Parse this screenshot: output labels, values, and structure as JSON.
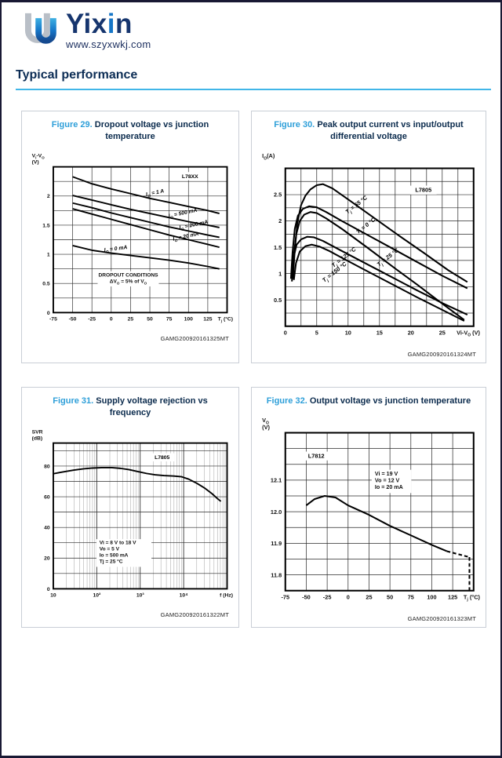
{
  "page": {
    "brand": {
      "pre": "Yix",
      "hi": "i",
      "post": "n"
    },
    "website": "www.szyxwkj.com",
    "heading": "Typical performance",
    "colors": {
      "accent_blue": "#2e9fd9",
      "navy": "#0b2b4d",
      "underline": "#41b6e8",
      "brand_navy": "#16356e",
      "brand_highlight": "#1576c8"
    }
  },
  "figures": [
    {
      "label": "Figure 29.",
      "title": "Dropout voltage vs junction temperature",
      "code": "GAMG200920161325MT"
    },
    {
      "label": "Figure 30.",
      "title": "Peak output current vs input/output differential voltage",
      "code": "GAMG200920161324MT"
    },
    {
      "label": "Figure 31.",
      "title": "Supply voltage rejection vs frequency",
      "code": "GAMG200920161322MT"
    },
    {
      "label": "Figure 32.",
      "title": "Output voltage vs junction temperature",
      "code": "GAMG200920161323MT"
    }
  ],
  "chart_data": [
    {
      "type": "line",
      "title": "Dropout voltage vs junction temperature",
      "xscale": "linear",
      "xlim": [
        -75,
        150
      ],
      "ylim": [
        0,
        2.5
      ],
      "xgrid": 25,
      "ygrid": 0.25,
      "xlabel": "T~j~ (°C)",
      "ylabel_lines": [
        "V~I~-V~O~",
        "(V)"
      ],
      "xticks": [
        {
          "v": -75,
          "l": "-75"
        },
        {
          "v": -50,
          "l": "-50"
        },
        {
          "v": -25,
          "l": "-25"
        },
        {
          "v": 0,
          "l": "0"
        },
        {
          "v": 25,
          "l": "25"
        },
        {
          "v": 50,
          "l": "50"
        },
        {
          "v": 75,
          "l": "75"
        },
        {
          "v": 100,
          "l": "100"
        },
        {
          "v": 125,
          "l": "125"
        }
      ],
      "yticks": [
        {
          "v": 0,
          "l": "0"
        },
        {
          "v": 0.5,
          "l": "0.5"
        },
        {
          "v": 1,
          "l": "1"
        },
        {
          "v": 1.5,
          "l": "1.5"
        },
        {
          "v": 2,
          "l": "2"
        }
      ],
      "series": [
        {
          "name": "Io = 1 A",
          "points": [
            [
              -50,
              2.33
            ],
            [
              -25,
              2.21
            ],
            [
              0,
              2.12
            ],
            [
              25,
              2.04
            ],
            [
              50,
              1.96
            ],
            [
              75,
              1.89
            ],
            [
              100,
              1.82
            ],
            [
              125,
              1.75
            ],
            [
              140,
              1.7
            ]
          ]
        },
        {
          "name": "Io = 500 mA",
          "points": [
            [
              -50,
              2.01
            ],
            [
              -25,
              1.93
            ],
            [
              0,
              1.85
            ],
            [
              25,
              1.77
            ],
            [
              50,
              1.7
            ],
            [
              75,
              1.63
            ],
            [
              100,
              1.56
            ],
            [
              125,
              1.5
            ],
            [
              140,
              1.46
            ]
          ]
        },
        {
          "name": "Io = 200 mA",
          "points": [
            [
              -50,
              1.88
            ],
            [
              -25,
              1.8
            ],
            [
              0,
              1.71
            ],
            [
              25,
              1.63
            ],
            [
              50,
              1.55
            ],
            [
              75,
              1.47
            ],
            [
              100,
              1.4
            ],
            [
              125,
              1.33
            ],
            [
              140,
              1.29
            ]
          ]
        },
        {
          "name": "Io = 20 mA",
          "points": [
            [
              -50,
              1.78
            ],
            [
              -25,
              1.69
            ],
            [
              0,
              1.6
            ],
            [
              25,
              1.51
            ],
            [
              50,
              1.42
            ],
            [
              75,
              1.33
            ],
            [
              100,
              1.25
            ],
            [
              125,
              1.17
            ],
            [
              140,
              1.12
            ]
          ]
        },
        {
          "name": "Io = 0 mA",
          "points": [
            [
              -50,
              1.15
            ],
            [
              -25,
              1.07
            ],
            [
              0,
              1.02
            ],
            [
              25,
              0.98
            ],
            [
              50,
              0.94
            ],
            [
              75,
              0.9
            ],
            [
              100,
              0.85
            ],
            [
              125,
              0.79
            ],
            [
              140,
              0.75
            ]
          ]
        }
      ],
      "labels": [
        {
          "text": "L78XX",
          "x": 102,
          "y": 2.31,
          "rot": 0,
          "box": true
        },
        {
          "text": "I~O~ = 1 A",
          "x": 57,
          "y": 2.03,
          "rot": -12,
          "italic": true
        },
        {
          "text": "I~O~ = 500 mA",
          "x": 93,
          "y": 1.68,
          "rot": -12,
          "italic": true
        },
        {
          "text": "I~O~ = 200 mA",
          "x": 107,
          "y": 1.48,
          "rot": -12,
          "italic": true
        },
        {
          "text": "I~O~ = 20 mA",
          "x": 97,
          "y": 1.28,
          "rot": -12,
          "italic": true
        },
        {
          "text": "I~O~ = 0 mA",
          "x": 6,
          "y": 1.07,
          "rot": -7,
          "italic": true
        }
      ],
      "notes": [
        {
          "lines": [
            "DROPOUT CONDITIONS",
            "ΔV~O~ = 5% of V~O~"
          ],
          "x": 22,
          "y": 0.62,
          "anchor": "middle"
        }
      ]
    },
    {
      "type": "line",
      "title": "Peak output current vs input/output differential voltage",
      "xscale": "linear",
      "xlim": [
        0,
        30
      ],
      "ylim": [
        0,
        3
      ],
      "xgrid": 2.5,
      "ygrid": 0.25,
      "xlabel": "Vi-V~O~ (V)",
      "ylabel_lines": [
        "I~O~(A)"
      ],
      "xticks": [
        {
          "v": 0,
          "l": "0"
        },
        {
          "v": 5,
          "l": "5"
        },
        {
          "v": 10,
          "l": "10"
        },
        {
          "v": 15,
          "l": "15"
        },
        {
          "v": 20,
          "l": "20"
        },
        {
          "v": 25,
          "l": "25"
        }
      ],
      "yticks": [
        {
          "v": 0.5,
          "l": "0.5"
        },
        {
          "v": 1,
          "l": "1"
        },
        {
          "v": 1.5,
          "l": "1.5"
        },
        {
          "v": 2,
          "l": "2"
        },
        {
          "v": 2.5,
          "l": "2.5"
        }
      ],
      "series": [
        {
          "name": "Tj = 55 °C",
          "points": [
            [
              1.2,
              0.9
            ],
            [
              1.5,
              1.45
            ],
            [
              1.9,
              1.95
            ],
            [
              2.5,
              2.3
            ],
            [
              3.2,
              2.48
            ],
            [
              4,
              2.6
            ],
            [
              5,
              2.68
            ],
            [
              6,
              2.7
            ],
            [
              7.5,
              2.62
            ],
            [
              10,
              2.41
            ],
            [
              14,
              2.07
            ],
            [
              18,
              1.73
            ],
            [
              22,
              1.4
            ],
            [
              26,
              1.06
            ],
            [
              29,
              0.84
            ]
          ]
        },
        {
          "name": "Tj = 0 °C",
          "points": [
            [
              0.9,
              0.9
            ],
            [
              1.15,
              1.4
            ],
            [
              1.5,
              1.85
            ],
            [
              2,
              2.1
            ],
            [
              2.8,
              2.23
            ],
            [
              3.8,
              2.28
            ],
            [
              5,
              2.26
            ],
            [
              6.5,
              2.17
            ],
            [
              9,
              2.0
            ],
            [
              13,
              1.74
            ],
            [
              17,
              1.48
            ],
            [
              21,
              1.22
            ],
            [
              25,
              0.96
            ],
            [
              29,
              0.72
            ]
          ]
        },
        {
          "name": "Tj = 25 °C",
          "points": [
            [
              1.05,
              0.85
            ],
            [
              1.35,
              1.35
            ],
            [
              1.75,
              1.75
            ],
            [
              2.3,
              2.0
            ],
            [
              3,
              2.12
            ],
            [
              4,
              2.17
            ],
            [
              5,
              2.15
            ],
            [
              6.5,
              2.05
            ],
            [
              9,
              1.85
            ],
            [
              13,
              1.5
            ],
            [
              17,
              1.14
            ],
            [
              21,
              0.79
            ],
            [
              25,
              0.43
            ],
            [
              28.5,
              0.12
            ]
          ]
        },
        {
          "name": "Tj = 125 °C",
          "points": [
            [
              1.0,
              0.95
            ],
            [
              1.3,
              1.3
            ],
            [
              1.8,
              1.55
            ],
            [
              2.5,
              1.65
            ],
            [
              3.5,
              1.7
            ],
            [
              4.5,
              1.69
            ],
            [
              6,
              1.62
            ],
            [
              9,
              1.43
            ],
            [
              13,
              1.18
            ],
            [
              17,
              0.93
            ],
            [
              21,
              0.68
            ],
            [
              25,
              0.44
            ],
            [
              29,
              0.22
            ]
          ]
        },
        {
          "name": "Tj = 150 °C",
          "points": [
            [
              1.35,
              0.88
            ],
            [
              1.7,
              1.2
            ],
            [
              2.3,
              1.42
            ],
            [
              3.2,
              1.52
            ],
            [
              4.2,
              1.55
            ],
            [
              5.5,
              1.51
            ],
            [
              7,
              1.43
            ],
            [
              9,
              1.3
            ],
            [
              13,
              1.05
            ],
            [
              17,
              0.8
            ],
            [
              21,
              0.55
            ],
            [
              25,
              0.31
            ],
            [
              28.5,
              0.1
            ]
          ]
        }
      ],
      "labels": [
        {
          "text": "L7805",
          "x": 22,
          "y": 2.55,
          "rot": 0,
          "box": true
        },
        {
          "text": "T~j~ = 55 °C",
          "x": 11.5,
          "y": 2.28,
          "rot": -38,
          "italic": true
        },
        {
          "text": "T~j~ = 0 °C",
          "x": 13,
          "y": 1.88,
          "rot": -38,
          "italic": true
        },
        {
          "text": "T~j~ = 125 °C",
          "x": 9.5,
          "y": 1.28,
          "rot": -38,
          "italic": true
        },
        {
          "text": "T~j~ = 25 °C",
          "x": 16.5,
          "y": 1.28,
          "rot": -38,
          "italic": true
        },
        {
          "text": "T~j~ = 150 °C",
          "x": 8,
          "y": 1.0,
          "rot": -38,
          "italic": true
        }
      ],
      "notes": []
    },
    {
      "type": "line",
      "title": "Supply voltage rejection vs frequency",
      "xscale": "log",
      "xlim": [
        10,
        100000
      ],
      "ylim": [
        0,
        95
      ],
      "ygrid": 10,
      "xlabel": "f (Hz)",
      "ylabel_lines": [
        "SVR",
        "(dB)"
      ],
      "xticks": [
        {
          "v": 10,
          "l": "10"
        },
        {
          "v": 100,
          "l": "10²"
        },
        {
          "v": 1000,
          "l": "10³"
        },
        {
          "v": 10000,
          "l": "10⁴"
        }
      ],
      "yticks": [
        {
          "v": 0,
          "l": "0"
        },
        {
          "v": 20,
          "l": "20"
        },
        {
          "v": 40,
          "l": "40"
        },
        {
          "v": 60,
          "l": "60"
        },
        {
          "v": 80,
          "l": "80"
        }
      ],
      "series": [
        {
          "name": "SVR",
          "points": [
            [
              10,
              75
            ],
            [
              14,
              75.8
            ],
            [
              20,
              76.6
            ],
            [
              30,
              77.4
            ],
            [
              50,
              78.2
            ],
            [
              80,
              78.7
            ],
            [
              130,
              79
            ],
            [
              220,
              79
            ],
            [
              350,
              78.5
            ],
            [
              550,
              77.7
            ],
            [
              900,
              76.4
            ],
            [
              1400,
              75.2
            ],
            [
              2200,
              74.3
            ],
            [
              3500,
              73.8
            ],
            [
              6000,
              73.5
            ],
            [
              9000,
              73
            ],
            [
              13000,
              71.5
            ],
            [
              20000,
              68.8
            ],
            [
              30000,
              65.8
            ],
            [
              45000,
              62
            ],
            [
              60000,
              58.8
            ],
            [
              72000,
              57
            ]
          ]
        }
      ],
      "labels": [
        {
          "text": "L7805",
          "x": 3200,
          "y": 84.5,
          "rot": 0,
          "box": true
        }
      ],
      "notes": [
        {
          "lines": [
            "Vi = 8 V to 18 V",
            "Vo = 5 V",
            "Io = 500 mA",
            "Tj = 25 °C"
          ],
          "x": 115,
          "y": 29,
          "anchor": "start"
        }
      ]
    },
    {
      "type": "line",
      "title": "Output voltage vs junction temperature",
      "xscale": "linear",
      "xlim": [
        -75,
        150
      ],
      "ylim": [
        11.75,
        12.25
      ],
      "xgrid": 25,
      "ygrid": 0.05,
      "xlabel": "T~j~ (°C)",
      "ylabel_lines": [
        "V~O~",
        "(V)"
      ],
      "xticks": [
        {
          "v": -75,
          "l": "-75"
        },
        {
          "v": -50,
          "l": "-50"
        },
        {
          "v": -25,
          "l": "-25"
        },
        {
          "v": 0,
          "l": "0"
        },
        {
          "v": 25,
          "l": "25"
        },
        {
          "v": 50,
          "l": "50"
        },
        {
          "v": 75,
          "l": "75"
        },
        {
          "v": 100,
          "l": "100"
        },
        {
          "v": 125,
          "l": "125"
        }
      ],
      "yticks": [
        {
          "v": 11.8,
          "l": "11.8"
        },
        {
          "v": 11.9,
          "l": "11.9"
        },
        {
          "v": 12.0,
          "l": "12.0"
        },
        {
          "v": 12.1,
          "l": "12.1"
        }
      ],
      "series": [
        {
          "name": "Vo",
          "points": [
            [
              -50,
              12.02
            ],
            [
              -40,
              12.04
            ],
            [
              -28,
              12.05
            ],
            [
              -15,
              12.045
            ],
            [
              0,
              12.02
            ],
            [
              25,
              11.99
            ],
            [
              50,
              11.955
            ],
            [
              75,
              11.925
            ],
            [
              100,
              11.895
            ],
            [
              118,
              11.875
            ]
          ]
        },
        {
          "name": "Vo dashed tail",
          "dash": true,
          "points": [
            [
              118,
              11.875
            ],
            [
              145,
              11.856
            ]
          ]
        },
        {
          "name": "limit line",
          "dash": true,
          "points": [
            [
              145,
              11.856
            ],
            [
              145,
              11.75
            ]
          ]
        }
      ],
      "labels": [
        {
          "text": "L7812",
          "x": -38,
          "y": 12.17,
          "rot": 0,
          "box": true
        }
      ],
      "notes": [
        {
          "lines": [
            "Vi = 19 V",
            "Vo = 12 V",
            "Io = 20 mA"
          ],
          "x": 32,
          "y": 12.115,
          "anchor": "start"
        }
      ]
    }
  ]
}
